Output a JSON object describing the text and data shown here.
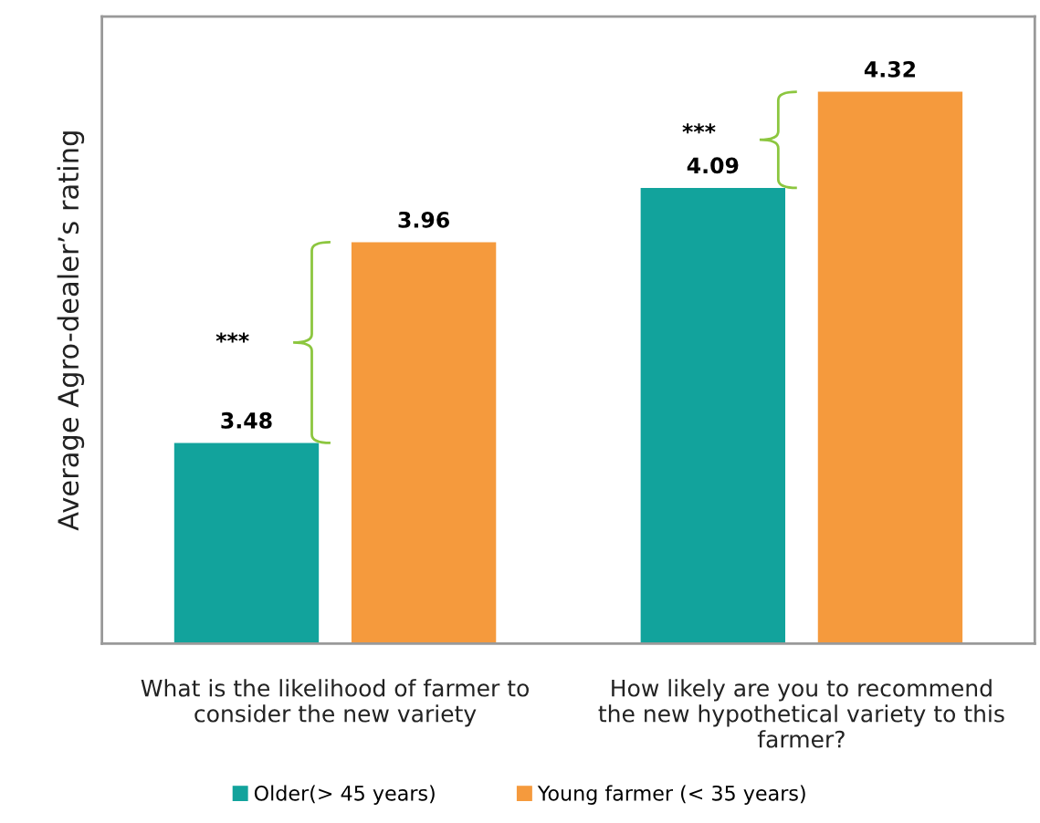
{
  "chart_data": {
    "type": "bar",
    "ylabel": "Average Agro-dealer’s rating",
    "categories": [
      "What is the likelihood of farmer to\nconsider the new variety",
      "How likely are you to recommend\nthe new hypothetical variety to this\nfarmer?"
    ],
    "series": [
      {
        "name": "Older(> 45 years)",
        "color": "#12a39c",
        "values": [
          3.48,
          4.09
        ]
      },
      {
        "name": "Young farmer (< 35 years)",
        "color": "#f59a3d",
        "values": [
          3.96,
          4.32
        ]
      }
    ],
    "ylim": [
      3,
      4.5
    ],
    "tick_labels": "x",
    "data_labels": true,
    "legend": "bottom",
    "grid": false,
    "annotations": [
      "***",
      "***"
    ]
  }
}
